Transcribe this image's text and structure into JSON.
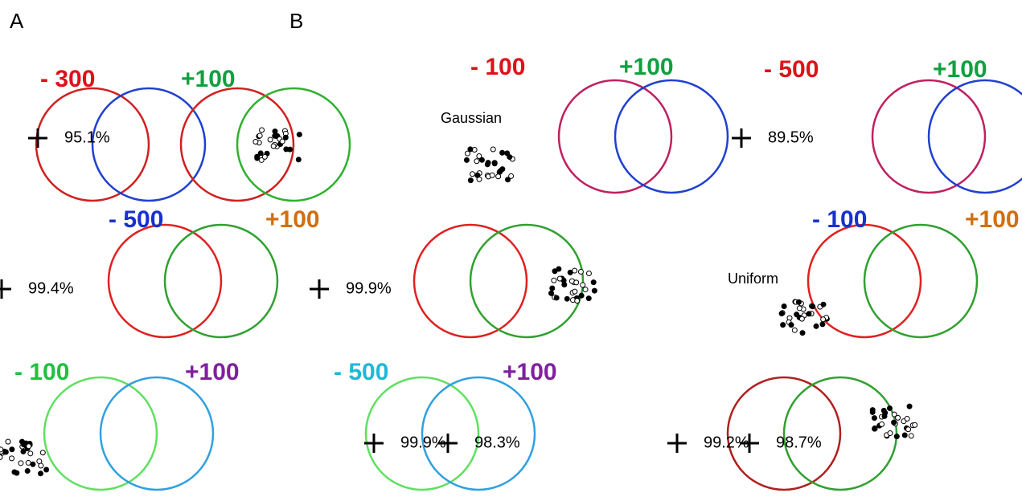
{
  "panel_labels": [
    "A",
    "B"
  ],
  "headers": [
    {
      "text": "- 300",
      "color": "#e0101a"
    },
    {
      "text": "+100",
      "color": "#10a040"
    },
    {
      "text": "- 100",
      "color": "#e0101a"
    },
    {
      "text": "+100",
      "color": "#10a040"
    },
    {
      "text": "- 500",
      "color": "#e0101a"
    },
    {
      "text": "+100",
      "color": "#10a040"
    },
    {
      "text": "- 500",
      "color": "#1830d0"
    },
    {
      "text": "+100",
      "color": "#d07010"
    },
    {
      "text": "- 100",
      "color": "#1830d0"
    },
    {
      "text": "+100",
      "color": "#d07010"
    },
    {
      "text": "- 100",
      "color": "#20c040"
    },
    {
      "text": "+100",
      "color": "#8020a0"
    },
    {
      "text": "- 500",
      "color": "#20b8d8"
    },
    {
      "text": "+100",
      "color": "#8020a0"
    }
  ],
  "accuracies": [
    "95.1%",
    "89.5%",
    "99.4%",
    "99.9%",
    "99.9%",
    "98.3%",
    "99.2%",
    "98.7%"
  ],
  "distributions": [
    "Gaussian",
    "Uniform"
  ]
}
